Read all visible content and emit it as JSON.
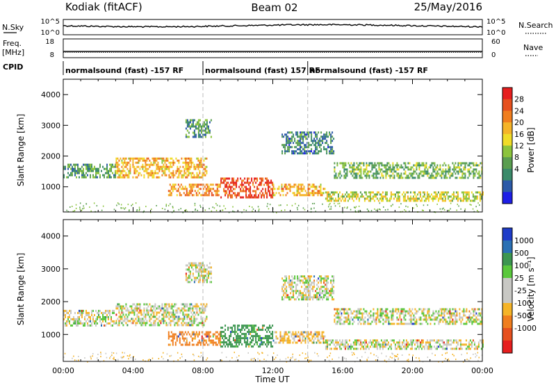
{
  "header": {
    "station": "Kodiak (fitACF)",
    "beam": "Beam 02",
    "date": "25/May/2016"
  },
  "strip_labels": {
    "nsky": "N.Sky",
    "nsearch": "N.Search",
    "nsky_ticks": [
      "10^5",
      "10^0"
    ],
    "nsearch_ticks": [
      "10^5",
      "10^0"
    ],
    "freq": "Freq.",
    "freq_unit": "[MHz]",
    "freq_ticks": [
      "18",
      "8"
    ],
    "nave": "Nave",
    "nave_ticks": [
      "60",
      "0"
    ],
    "cpid": "CPID",
    "cpid_segments": [
      {
        "start": 0,
        "end": 8,
        "label": "normalsound (fast) -157 RF"
      },
      {
        "start": 8,
        "end": 14,
        "label": "normalsound (fast) 157 RF"
      },
      {
        "start": 14,
        "end": 24,
        "label": "normalsound (fast) -157 RF"
      }
    ]
  },
  "chart_data": [
    {
      "type": "heatmap",
      "name": "power",
      "ylabel": "Slant Range [km]",
      "xlabel": "",
      "xlim": [
        0,
        24
      ],
      "ylim": [
        180,
        4500
      ],
      "yticks": [
        "1000",
        "2000",
        "3000",
        "4000"
      ],
      "colorbar_label": "Power [dB]",
      "colorbar_ticks": [
        "28",
        "24",
        "20",
        "16",
        "12",
        "8",
        "4"
      ],
      "colorbar_colors": [
        "#1e1ee6",
        "#2c5aa8",
        "#3a8a6a",
        "#5a9e50",
        "#8cc43c",
        "#f0dc28",
        "#f5b428",
        "#f07e1e",
        "#e6501e",
        "#e61e1e"
      ],
      "echo_bands": [
        {
          "t0": 0.0,
          "t1": 3.0,
          "r0": 1300,
          "r1": 1750,
          "level": 8
        },
        {
          "t0": 3.0,
          "t1": 8.2,
          "r0": 1300,
          "r1": 1950,
          "level": 18
        },
        {
          "t0": 6.0,
          "t1": 9.0,
          "r0": 700,
          "r1": 1100,
          "level": 20
        },
        {
          "t0": 9.0,
          "t1": 12.0,
          "r0": 650,
          "r1": 1300,
          "level": 24
        },
        {
          "t0": 12.0,
          "t1": 15.0,
          "r0": 750,
          "r1": 1100,
          "level": 18
        },
        {
          "t0": 15.0,
          "t1": 24.0,
          "r0": 550,
          "r1": 850,
          "level": 14
        },
        {
          "t0": 15.5,
          "t1": 24.0,
          "r0": 1300,
          "r1": 1800,
          "level": 10
        },
        {
          "t0": 12.5,
          "t1": 15.5,
          "r0": 2100,
          "r1": 2800,
          "level": 6
        },
        {
          "t0": 7.0,
          "t1": 8.5,
          "r0": 2600,
          "r1": 3200,
          "level": 8
        }
      ]
    },
    {
      "type": "heatmap",
      "name": "velocity",
      "ylabel": "Slant Range [km]",
      "xlabel": "Time UT",
      "xlim": [
        0,
        24
      ],
      "ylim": [
        180,
        4500
      ],
      "xticks": [
        "00:00",
        "04:00",
        "08:00",
        "12:00",
        "16:00",
        "20:00",
        "00:00"
      ],
      "yticks": [
        "1000",
        "2000",
        "3000",
        "4000"
      ],
      "colorbar_label": "Velocity [m s⁻¹]",
      "colorbar_ticks": [
        "1000",
        "500",
        "100",
        "25",
        "-25",
        "-100",
        "-500",
        "-1000"
      ],
      "colorbar_colors": [
        "#1e3cc8",
        "#2a70b4",
        "#3c9650",
        "#5ac83c",
        "#c8c8c4",
        "#c8c8c4",
        "#f5b428",
        "#f07e1e",
        "#e6501e",
        "#e61e1e"
      ],
      "echo_bands": [
        {
          "t0": 0.0,
          "t1": 3.0,
          "r0": 1300,
          "r1": 1750,
          "vel": 0
        },
        {
          "t0": 3.0,
          "t1": 8.2,
          "r0": 1300,
          "r1": 1950,
          "vel": 0
        },
        {
          "t0": 6.0,
          "t1": 9.0,
          "r0": 700,
          "r1": 1100,
          "vel": -150
        },
        {
          "t0": 9.0,
          "t1": 12.0,
          "r0": 650,
          "r1": 1300,
          "vel": 150
        },
        {
          "t0": 12.0,
          "t1": 15.0,
          "r0": 750,
          "r1": 1100,
          "vel": -50
        },
        {
          "t0": 15.0,
          "t1": 24.0,
          "r0": 550,
          "r1": 850,
          "vel": 0
        },
        {
          "t0": 15.5,
          "t1": 24.0,
          "r0": 1300,
          "r1": 1800,
          "vel": 0
        },
        {
          "t0": 12.5,
          "t1": 15.5,
          "r0": 2100,
          "r1": 2800,
          "vel": 0
        },
        {
          "t0": 7.0,
          "t1": 8.5,
          "r0": 2600,
          "r1": 3200,
          "vel": 0
        }
      ]
    }
  ]
}
